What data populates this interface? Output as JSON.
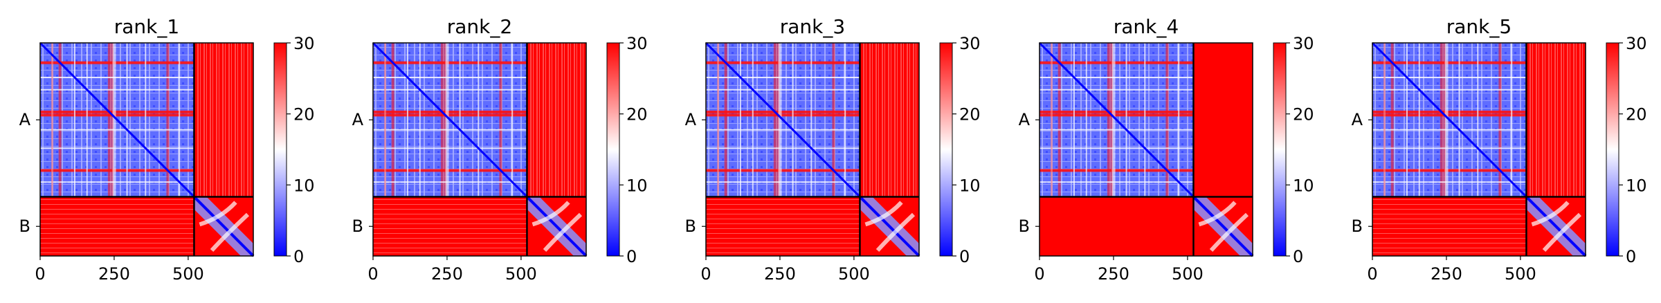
{
  "chart_data": {
    "type": "heatmap",
    "colormap": {
      "low": "#0000ff",
      "mid": "#ffffff",
      "high": "#ff0000"
    },
    "colorbar": {
      "vmin": 0,
      "vmax": 30,
      "ticks": [
        "0",
        "10",
        "20",
        "30"
      ]
    },
    "x_ticks": [
      {
        "value": 0,
        "label": "0"
      },
      {
        "value": 250,
        "label": "250"
      },
      {
        "value": 500,
        "label": "500"
      }
    ],
    "x_range": [
      0,
      720
    ],
    "chains": [
      {
        "label": "A",
        "start": 0,
        "end": 520
      },
      {
        "label": "B",
        "start": 520,
        "end": 720
      }
    ],
    "panels": [
      {
        "title": "rank_1"
      },
      {
        "title": "rank_2"
      },
      {
        "title": "rank_3"
      },
      {
        "title": "rank_4"
      },
      {
        "title": "rank_5"
      }
    ]
  }
}
